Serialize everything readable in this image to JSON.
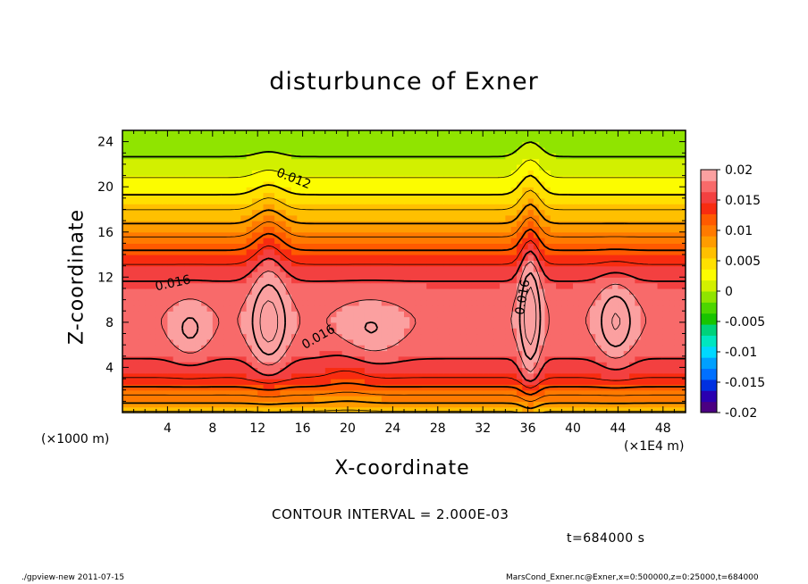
{
  "chart_data": {
    "type": "heatmap",
    "title": "disturbunce of Exner",
    "xlabel": "X-coordinate",
    "ylabel": "Z-coordinate",
    "x_unit": "(×1000 m)",
    "x_scale": "(×1E4 m)",
    "xlim": [
      0,
      50
    ],
    "ylim": [
      0,
      25
    ],
    "x_ticks": [
      4,
      8,
      12,
      16,
      20,
      24,
      28,
      32,
      36,
      40,
      44,
      48
    ],
    "y_ticks": [
      4,
      8,
      12,
      16,
      20,
      24
    ],
    "contour_interval": "CONTOUR INTERVAL = 2.000E-03",
    "time_label": "t=684000 s",
    "contour_labels": [
      {
        "text": "0.012",
        "x": 13.6,
        "y": 21.0,
        "angle": 22
      },
      {
        "text": "0.016",
        "x": 3.0,
        "y": 10.8,
        "angle": -12
      },
      {
        "text": "0.016",
        "x": 16.2,
        "y": 5.6,
        "angle": -30
      },
      {
        "text": "0.016",
        "x": 35.6,
        "y": 8.6,
        "angle": -80
      }
    ],
    "colorbar": {
      "labels": [
        "0.02",
        "0.015",
        "0.01",
        "0.005",
        "0",
        "-0.005",
        "-0.01",
        "-0.015",
        "-0.02"
      ],
      "values": [
        0.02,
        0.015,
        0.01,
        0.005,
        0,
        -0.005,
        -0.01,
        -0.015,
        -0.02
      ],
      "colors": [
        "#4b0082",
        "#2a00b0",
        "#0030e0",
        "#0070ff",
        "#00a0ff",
        "#00d8ff",
        "#00e6c0",
        "#00d27a",
        "#18c400",
        "#4cd600",
        "#90e400",
        "#d2f000",
        "#fcfc00",
        "#ffe000",
        "#ffc000",
        "#ff9c00",
        "#ff7a00",
        "#ff5a00",
        "#f82c10",
        "#f34040",
        "#f86a6a",
        "#fba0a0"
      ],
      "range": [
        -0.02,
        0.02
      ]
    }
  },
  "footer": {
    "left": "./gpview-new   2011-07-15",
    "right": "MarsCond_Exner.nc@Exner,x=0:500000,z=0:25000,t=684000"
  }
}
